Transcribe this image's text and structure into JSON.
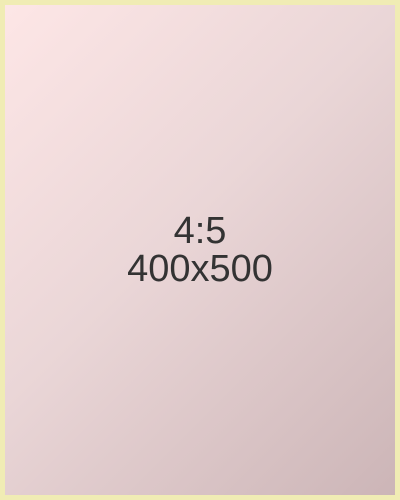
{
  "placeholder": {
    "ratio": "4:5",
    "size": "400x500",
    "colors": {
      "border": "#f0ecb4",
      "gradient_start": "#fde6e6",
      "gradient_end": "#ccb5b7",
      "text": "#333333"
    }
  }
}
